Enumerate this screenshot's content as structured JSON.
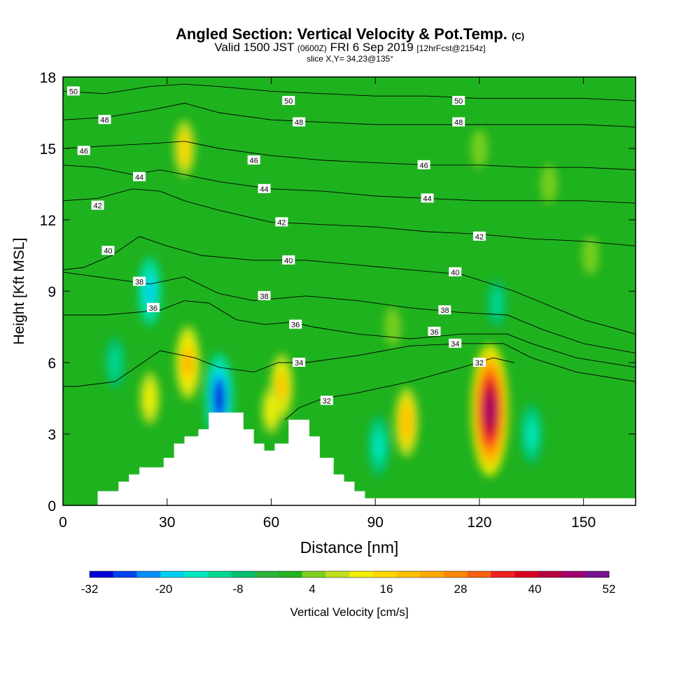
{
  "header": {
    "title_main": "Angled Section: Vertical Velocity & Pot.Temp.",
    "title_tag": "(C)",
    "subtitle_main": "Valid 1500 JST",
    "subtitle_utc": "(0600Z)",
    "subtitle_date": "FRI 6 Sep 2019",
    "subtitle_fcst": "[12hrFcst@2154z]",
    "slice": "slice X,Y= 34,23@135°"
  },
  "chart_data": {
    "type": "heatmap",
    "xlabel": "Distance [nm]",
    "ylabel": "Height [Kft MSL]",
    "xlim": [
      0,
      165
    ],
    "ylim": [
      0,
      18
    ],
    "xticks": [
      0,
      30,
      60,
      90,
      120,
      150
    ],
    "yticks": [
      0,
      3,
      6,
      9,
      12,
      15,
      18
    ],
    "grid": false,
    "colorbar": {
      "label": "Vertical Velocity [cm/s]",
      "min": -32,
      "max": 52,
      "step": 4,
      "tick_labels": [
        "-32",
        "-20",
        "-8",
        "4",
        "16",
        "28",
        "40",
        "52"
      ],
      "colors": [
        "#0000d8",
        "#0044ee",
        "#0090f8",
        "#00d0f0",
        "#00e8c0",
        "#00d890",
        "#00c070",
        "#2fb43a",
        "#22b422",
        "#80d020",
        "#c0e020",
        "#f0f000",
        "#ffd800",
        "#ffc000",
        "#ffa800",
        "#ff8800",
        "#f86010",
        "#f02020",
        "#d80020",
        "#b80040",
        "#a00070",
        "#7a1090"
      ],
      "background_color": "#1fb21f"
    },
    "vertical_velocity_features": [
      {
        "x": 35,
        "y": 15.0,
        "value": 14
      },
      {
        "x": 25,
        "y": 9.0,
        "value": -20
      },
      {
        "x": 15,
        "y": 6.0,
        "value": -12
      },
      {
        "x": 36,
        "y": 6.0,
        "value": 22
      },
      {
        "x": 25,
        "y": 4.5,
        "value": 12
      },
      {
        "x": 45,
        "y": 4.5,
        "value": -30
      },
      {
        "x": 63,
        "y": 5.0,
        "value": 18
      },
      {
        "x": 60,
        "y": 4.0,
        "value": 10
      },
      {
        "x": 91,
        "y": 2.5,
        "value": -16
      },
      {
        "x": 99,
        "y": 3.5,
        "value": 20
      },
      {
        "x": 123,
        "y": 4.0,
        "value": 48
      },
      {
        "x": 125,
        "y": 8.5,
        "value": -10
      },
      {
        "x": 135,
        "y": 3.0,
        "value": -16
      },
      {
        "x": 152,
        "y": 10.5,
        "value": 6
      },
      {
        "x": 120,
        "y": 15.0,
        "value": 6
      },
      {
        "x": 140,
        "y": 13.5,
        "value": 6
      },
      {
        "x": 95,
        "y": 7.5,
        "value": 6
      }
    ],
    "terrain_profile": [
      [
        0,
        0
      ],
      [
        10,
        0
      ],
      [
        10,
        0.6
      ],
      [
        16,
        0.6
      ],
      [
        16,
        1.0
      ],
      [
        19,
        1.0
      ],
      [
        19,
        1.3
      ],
      [
        22,
        1.3
      ],
      [
        22,
        1.6
      ],
      [
        29,
        1.6
      ],
      [
        29,
        2.0
      ],
      [
        32,
        2.0
      ],
      [
        32,
        2.6
      ],
      [
        35,
        2.6
      ],
      [
        35,
        2.9
      ],
      [
        39,
        2.9
      ],
      [
        39,
        3.2
      ],
      [
        42,
        3.2
      ],
      [
        42,
        3.9
      ],
      [
        52,
        3.9
      ],
      [
        52,
        3.2
      ],
      [
        55,
        3.2
      ],
      [
        55,
        2.6
      ],
      [
        58,
        2.6
      ],
      [
        58,
        2.3
      ],
      [
        61,
        2.3
      ],
      [
        61,
        2.6
      ],
      [
        65,
        2.6
      ],
      [
        65,
        3.6
      ],
      [
        71,
        3.6
      ],
      [
        71,
        2.9
      ],
      [
        74,
        2.9
      ],
      [
        74,
        2.0
      ],
      [
        78,
        2.0
      ],
      [
        78,
        1.3
      ],
      [
        81,
        1.3
      ],
      [
        81,
        1.0
      ],
      [
        84,
        1.0
      ],
      [
        84,
        0.6
      ],
      [
        87,
        0.6
      ],
      [
        87,
        0.3
      ],
      [
        165,
        0.3
      ],
      [
        165,
        0
      ]
    ],
    "isentropes": [
      {
        "level": 32,
        "label": "32",
        "points": [
          [
            130,
            6.0
          ],
          [
            124,
            6.2
          ],
          [
            115,
            5.8
          ],
          [
            100,
            5.2
          ],
          [
            84,
            4.7
          ],
          [
            75,
            4.5
          ],
          [
            68,
            4.1
          ],
          [
            64,
            3.6
          ]
        ],
        "labels": [
          [
            120,
            6.0
          ],
          [
            76,
            4.4
          ]
        ]
      },
      {
        "level": 34,
        "label": "34",
        "points": [
          [
            165,
            5.2
          ],
          [
            148,
            5.6
          ],
          [
            135,
            6.2
          ],
          [
            127,
            6.8
          ],
          [
            115,
            6.8
          ],
          [
            100,
            6.7
          ],
          [
            85,
            6.3
          ],
          [
            70,
            6.0
          ],
          [
            62,
            6.0
          ],
          [
            55,
            5.6
          ],
          [
            45,
            5.8
          ],
          [
            38,
            6.2
          ],
          [
            28,
            6.5
          ],
          [
            15,
            5.2
          ],
          [
            4,
            5.0
          ],
          [
            0,
            5.0
          ]
        ],
        "labels": [
          [
            68,
            6.0
          ],
          [
            113,
            6.8
          ]
        ]
      },
      {
        "level": 36,
        "label": "36",
        "points": [
          [
            165,
            5.8
          ],
          [
            148,
            6.2
          ],
          [
            135,
            6.8
          ],
          [
            128,
            7.2
          ],
          [
            115,
            7.2
          ],
          [
            100,
            7.0
          ],
          [
            85,
            7.2
          ],
          [
            72,
            7.5
          ],
          [
            66,
            7.7
          ],
          [
            58,
            7.6
          ],
          [
            50,
            7.8
          ],
          [
            42,
            8.5
          ],
          [
            35,
            8.6
          ],
          [
            28,
            8.2
          ],
          [
            12,
            8.0
          ],
          [
            0,
            8.0
          ]
        ],
        "labels": [
          [
            26,
            8.3
          ],
          [
            67,
            7.6
          ],
          [
            107,
            7.3
          ]
        ]
      },
      {
        "level": 38,
        "label": "38",
        "points": [
          [
            165,
            6.4
          ],
          [
            150,
            6.8
          ],
          [
            138,
            7.4
          ],
          [
            128,
            8.0
          ],
          [
            115,
            8.1
          ],
          [
            100,
            8.3
          ],
          [
            85,
            8.6
          ],
          [
            70,
            8.8
          ],
          [
            55,
            8.6
          ],
          [
            45,
            8.9
          ],
          [
            35,
            9.6
          ],
          [
            25,
            9.3
          ],
          [
            10,
            9.6
          ],
          [
            0,
            9.8
          ]
        ],
        "labels": [
          [
            22,
            9.4
          ],
          [
            58,
            8.8
          ],
          [
            110,
            8.2
          ]
        ]
      },
      {
        "level": 40,
        "label": "40",
        "points": [
          [
            165,
            7.2
          ],
          [
            150,
            7.8
          ],
          [
            140,
            8.4
          ],
          [
            130,
            9.0
          ],
          [
            115,
            9.7
          ],
          [
            100,
            9.9
          ],
          [
            85,
            10.1
          ],
          [
            70,
            10.3
          ],
          [
            55,
            10.3
          ],
          [
            40,
            10.5
          ],
          [
            30,
            10.9
          ],
          [
            22,
            11.3
          ],
          [
            14,
            10.5
          ],
          [
            6,
            10.0
          ],
          [
            0,
            9.9
          ]
        ],
        "labels": [
          [
            13,
            10.7
          ],
          [
            65,
            10.3
          ],
          [
            113,
            9.8
          ]
        ]
      },
      {
        "level": 42,
        "label": "42",
        "points": [
          [
            165,
            10.9
          ],
          [
            150,
            11.1
          ],
          [
            135,
            11.2
          ],
          [
            120,
            11.4
          ],
          [
            105,
            11.5
          ],
          [
            90,
            11.7
          ],
          [
            75,
            11.8
          ],
          [
            60,
            11.9
          ],
          [
            45,
            12.4
          ],
          [
            35,
            12.8
          ],
          [
            28,
            13.2
          ],
          [
            20,
            13.3
          ],
          [
            10,
            12.9
          ],
          [
            0,
            12.8
          ]
        ],
        "labels": [
          [
            10,
            12.6
          ],
          [
            63,
            11.9
          ],
          [
            120,
            11.3
          ]
        ]
      },
      {
        "level": 44,
        "label": "44",
        "points": [
          [
            165,
            12.7
          ],
          [
            150,
            12.8
          ],
          [
            135,
            12.8
          ],
          [
            120,
            12.8
          ],
          [
            105,
            12.9
          ],
          [
            90,
            13.0
          ],
          [
            75,
            13.2
          ],
          [
            60,
            13.3
          ],
          [
            45,
            13.6
          ],
          [
            35,
            13.9
          ],
          [
            28,
            14.1
          ],
          [
            20,
            13.9
          ],
          [
            10,
            14.2
          ],
          [
            0,
            14.3
          ]
        ],
        "labels": [
          [
            22,
            13.8
          ],
          [
            58,
            13.3
          ],
          [
            105,
            12.9
          ]
        ]
      },
      {
        "level": 46,
        "label": "46",
        "points": [
          [
            165,
            14.1
          ],
          [
            150,
            14.2
          ],
          [
            135,
            14.2
          ],
          [
            120,
            14.3
          ],
          [
            105,
            14.3
          ],
          [
            90,
            14.4
          ],
          [
            75,
            14.5
          ],
          [
            60,
            14.7
          ],
          [
            45,
            15.0
          ],
          [
            35,
            15.3
          ],
          [
            25,
            15.2
          ],
          [
            12,
            15.1
          ],
          [
            0,
            15.0
          ]
        ],
        "labels": [
          [
            6,
            14.9
          ],
          [
            55,
            14.5
          ],
          [
            104,
            14.3
          ]
        ]
      },
      {
        "level": 48,
        "label": "48",
        "points": [
          [
            165,
            15.9
          ],
          [
            150,
            16.0
          ],
          [
            135,
            16.0
          ],
          [
            120,
            16.0
          ],
          [
            105,
            16.0
          ],
          [
            90,
            16.0
          ],
          [
            75,
            16.1
          ],
          [
            60,
            16.2
          ],
          [
            45,
            16.5
          ],
          [
            35,
            16.9
          ],
          [
            25,
            16.6
          ],
          [
            12,
            16.3
          ],
          [
            0,
            16.2
          ]
        ],
        "labels": [
          [
            12,
            16.2
          ],
          [
            68,
            16.1
          ],
          [
            114,
            16.1
          ]
        ]
      },
      {
        "level": 50,
        "label": "50",
        "points": [
          [
            165,
            17.0
          ],
          [
            150,
            17.1
          ],
          [
            135,
            17.1
          ],
          [
            120,
            17.1
          ],
          [
            105,
            17.2
          ],
          [
            90,
            17.2
          ],
          [
            75,
            17.3
          ],
          [
            60,
            17.4
          ],
          [
            45,
            17.6
          ],
          [
            35,
            17.7
          ],
          [
            25,
            17.6
          ],
          [
            12,
            17.3
          ],
          [
            0,
            17.4
          ]
        ],
        "labels": [
          [
            3,
            17.4
          ],
          [
            65,
            17.0
          ],
          [
            114,
            17.0
          ]
        ]
      }
    ]
  }
}
